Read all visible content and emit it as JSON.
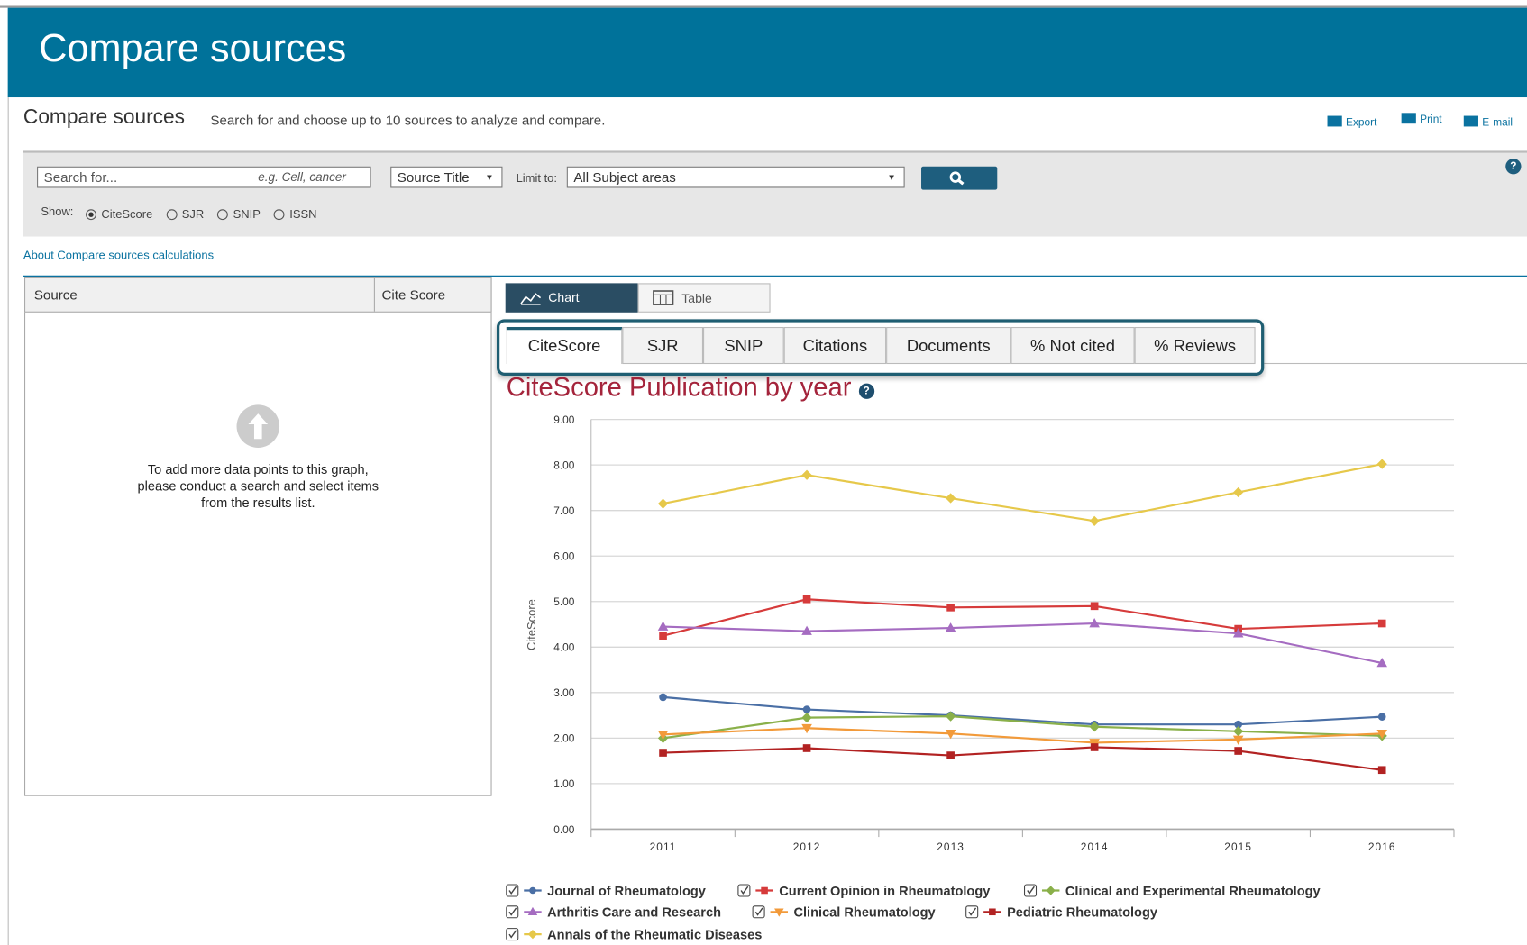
{
  "header": {
    "title": "Compare sources"
  },
  "toolbar": {
    "heading": "Compare sources",
    "description": "Search for and choose up to 10 sources to analyze and compare.",
    "actions": [
      "Export",
      "Print",
      "E-mail"
    ]
  },
  "search": {
    "placeholder": "Search for...",
    "hint": "e.g. Cell, cancer",
    "field": "Source Title",
    "limit_label": "Limit to:",
    "limit_value": "All Subject areas",
    "show_label": "Show:",
    "show_options": [
      "CiteScore",
      "SJR",
      "SNIP",
      "ISSN"
    ]
  },
  "about_link": "About Compare sources calculations",
  "source_table": {
    "columns": [
      "Source",
      "Cite Score"
    ],
    "empty_message": "To add more data points to this graph, please conduct a search and select items from the results list."
  },
  "view_tabs": [
    "Chart",
    "Table"
  ],
  "metric_tabs": [
    "CiteScore",
    "SJR",
    "SNIP",
    "Citations",
    "Documents",
    "% Not cited",
    "% Reviews"
  ],
  "chart_data": {
    "type": "line",
    "title": "CiteScore Publication by year",
    "y_label": "CiteScore",
    "categories": [
      "2011",
      "2012",
      "2013",
      "2014",
      "2015",
      "2016"
    ],
    "ylim": [
      0,
      9
    ],
    "yticks": [
      {
        "value": 0,
        "label": "0.00"
      },
      {
        "value": 1,
        "label": "1.00"
      },
      {
        "value": 2,
        "label": "2.00"
      },
      {
        "value": 3,
        "label": "3.00"
      },
      {
        "value": 4,
        "label": "4.00"
      },
      {
        "value": 5,
        "label": "5.00"
      },
      {
        "value": 6,
        "label": "6.00"
      },
      {
        "value": 7,
        "label": "7.00"
      },
      {
        "value": 8,
        "label": "8.00"
      },
      {
        "value": 9,
        "label": "9.00"
      }
    ],
    "grid": true,
    "series": [
      {
        "name": "Journal of Rheumatology",
        "color": "#4a6fa5",
        "marker": "circle",
        "values": [
          2.9,
          2.63,
          2.5,
          2.3,
          2.3,
          2.47
        ]
      },
      {
        "name": "Current Opinion in Rheumatology",
        "color": "#d63b3b",
        "marker": "square",
        "values": [
          4.25,
          5.05,
          4.87,
          4.9,
          4.4,
          4.52
        ]
      },
      {
        "name": "Clinical and Experimental Rheumatology",
        "color": "#8ab04a",
        "marker": "diamond",
        "values": [
          2.0,
          2.45,
          2.48,
          2.25,
          2.15,
          2.05
        ]
      },
      {
        "name": "Arthritis Care and Research",
        "color": "#a56cc1",
        "marker": "triangle",
        "values": [
          4.45,
          4.35,
          4.42,
          4.52,
          4.3,
          3.65
        ]
      },
      {
        "name": "Clinical Rheumatology",
        "color": "#f29a3a",
        "marker": "triangle-down",
        "values": [
          2.08,
          2.22,
          2.1,
          1.9,
          1.97,
          2.1
        ]
      },
      {
        "name": "Pediatric Rheumatology",
        "color": "#b22222",
        "marker": "square",
        "values": [
          1.68,
          1.78,
          1.62,
          1.8,
          1.72,
          1.3
        ]
      },
      {
        "name": "Annals of the Rheumatic Diseases",
        "color": "#e6c84a",
        "marker": "diamond",
        "values": [
          7.15,
          7.78,
          7.27,
          6.77,
          7.4,
          8.02
        ]
      }
    ]
  }
}
